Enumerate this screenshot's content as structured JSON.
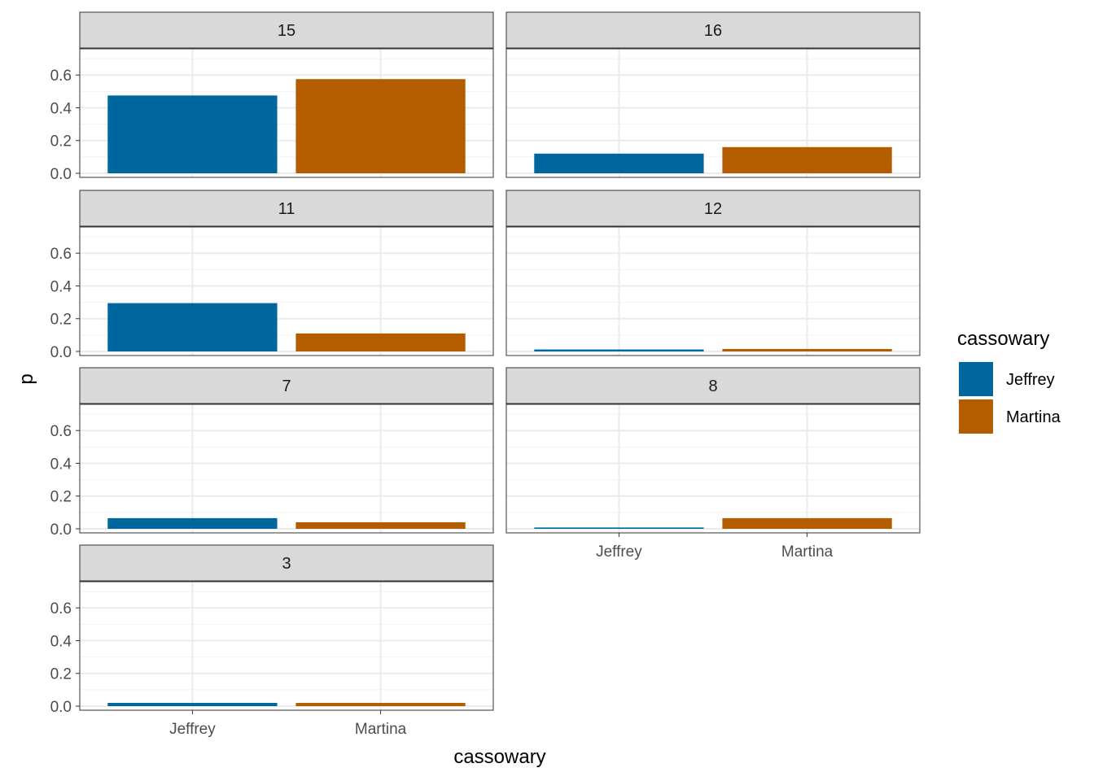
{
  "chart_data": {
    "type": "bar",
    "xlabel": "cassowary",
    "ylabel": "p",
    "categories": [
      "Jeffrey",
      "Martina"
    ],
    "ylim": [
      0,
      0.6
    ],
    "yticks": [
      "0.0",
      "0.2",
      "0.4",
      "0.6"
    ],
    "grid": true,
    "legend": {
      "title": "cassowary",
      "placement": "right",
      "entries": [
        {
          "label": "Jeffrey",
          "color": "#00669E"
        },
        {
          "label": "Martina",
          "color": "#B35C00"
        }
      ]
    },
    "facets": [
      {
        "label": "15",
        "values": [
          0.475,
          0.575
        ]
      },
      {
        "label": "16",
        "values": [
          0.12,
          0.16
        ]
      },
      {
        "label": "11",
        "values": [
          0.295,
          0.11
        ]
      },
      {
        "label": "12",
        "values": [
          0.012,
          0.015
        ]
      },
      {
        "label": "7",
        "values": [
          0.065,
          0.04
        ]
      },
      {
        "label": "8",
        "values": [
          0.008,
          0.065
        ]
      },
      {
        "label": "3",
        "values": [
          0.02,
          0.02
        ]
      }
    ]
  }
}
